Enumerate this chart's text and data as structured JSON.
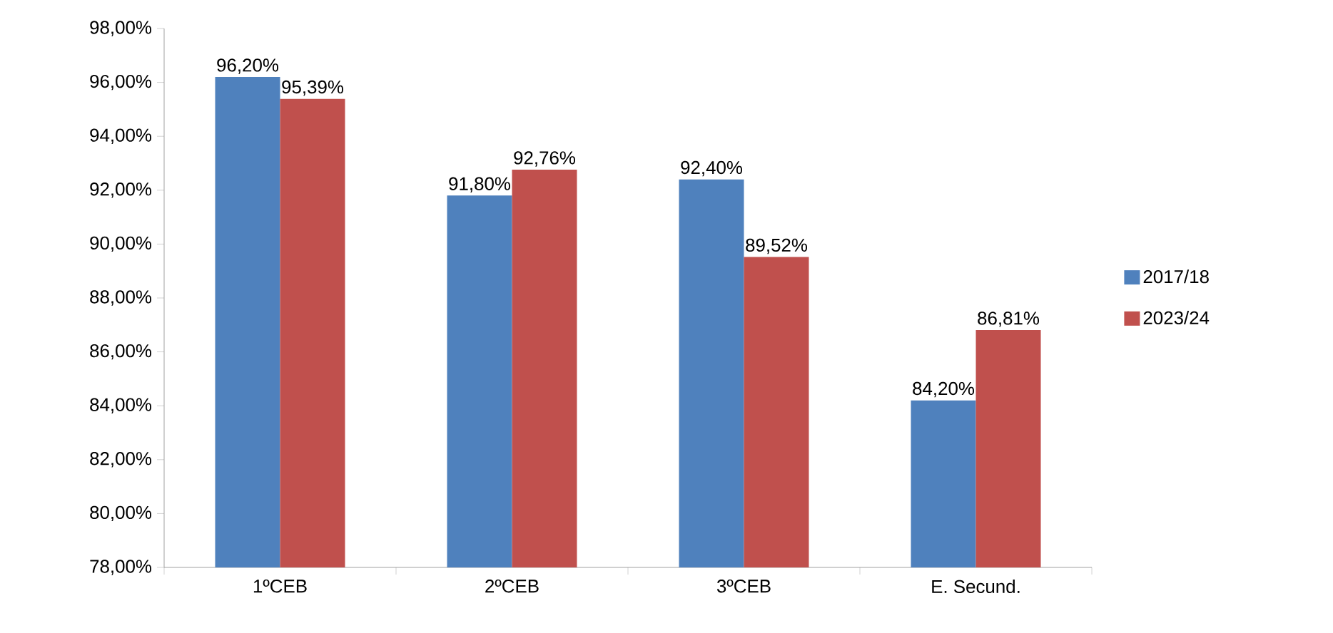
{
  "chart_data": {
    "type": "bar",
    "categories": [
      "1ºCEB",
      "2ºCEB",
      "3ºCEB",
      "E. Secund."
    ],
    "series": [
      {
        "name": "2017/18",
        "color": "#4f81bd",
        "values": [
          96.2,
          91.8,
          92.4,
          84.2
        ],
        "value_labels": [
          "96,20%",
          "91,80%",
          "92,40%",
          "84,20%"
        ]
      },
      {
        "name": "2023/24",
        "color": "#c0504d",
        "values": [
          95.39,
          92.76,
          89.52,
          86.81
        ],
        "value_labels": [
          "95,39%",
          "92,76%",
          "89,52%",
          "86,81%"
        ]
      }
    ],
    "ylim": [
      78,
      98
    ],
    "yticks": [
      {
        "value": 78,
        "label": "78,00%"
      },
      {
        "value": 80,
        "label": "80,00%"
      },
      {
        "value": 82,
        "label": "82,00%"
      },
      {
        "value": 84,
        "label": "84,00%"
      },
      {
        "value": 86,
        "label": "86,00%"
      },
      {
        "value": 88,
        "label": "88,00%"
      },
      {
        "value": 90,
        "label": "90,00%"
      },
      {
        "value": 92,
        "label": "92,00%"
      },
      {
        "value": 94,
        "label": "94,00%"
      },
      {
        "value": 96,
        "label": "96,00%"
      },
      {
        "value": 98,
        "label": "98,00%"
      }
    ],
    "grid": false,
    "legend": "right"
  }
}
